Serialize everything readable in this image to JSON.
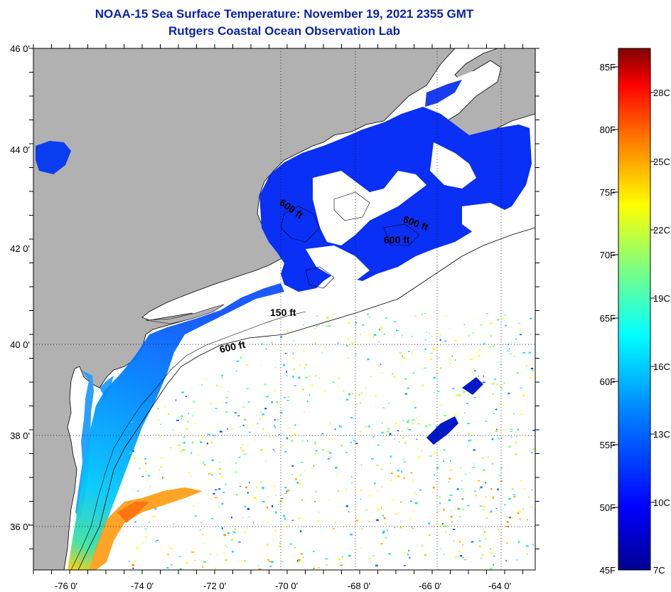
{
  "title": "NOAA-15 Sea Surface Temperature:  November 19, 2021 2355 GMT",
  "subtitle": "Rutgers Coastal Ocean Observation Lab",
  "map": {
    "lat_labels": [
      "46 0'",
      "44 0'",
      "42 0'",
      "40 0'",
      "38 0'",
      "36 0'"
    ],
    "lon_labels": [
      "-76 0'",
      "-74 0'",
      "-72 0'",
      "-70 0'",
      "-68 0'",
      "-66 0'",
      "-64 0'"
    ],
    "contour_labels": [
      "600 ft",
      "600 ft",
      "600 ft",
      "150 ft",
      "600 ft"
    ],
    "colors": {
      "land": "#b1b1b1",
      "no_data": "#ffffff",
      "coastline": "#000000",
      "grid": "#000000"
    }
  },
  "colorbar": {
    "f_labels": [
      "85F",
      "80F",
      "75F",
      "70F",
      "65F",
      "60F",
      "55F",
      "50F",
      "45F"
    ],
    "c_labels": [
      "28C",
      "25C",
      "22C",
      "19C",
      "16C",
      "13C",
      "10C",
      "7C"
    ],
    "colors": [
      "#00008f",
      "#0000ff",
      "#0080ff",
      "#00ffff",
      "#80ff80",
      "#ffff00",
      "#ff8000",
      "#ff0000",
      "#800000"
    ]
  }
}
